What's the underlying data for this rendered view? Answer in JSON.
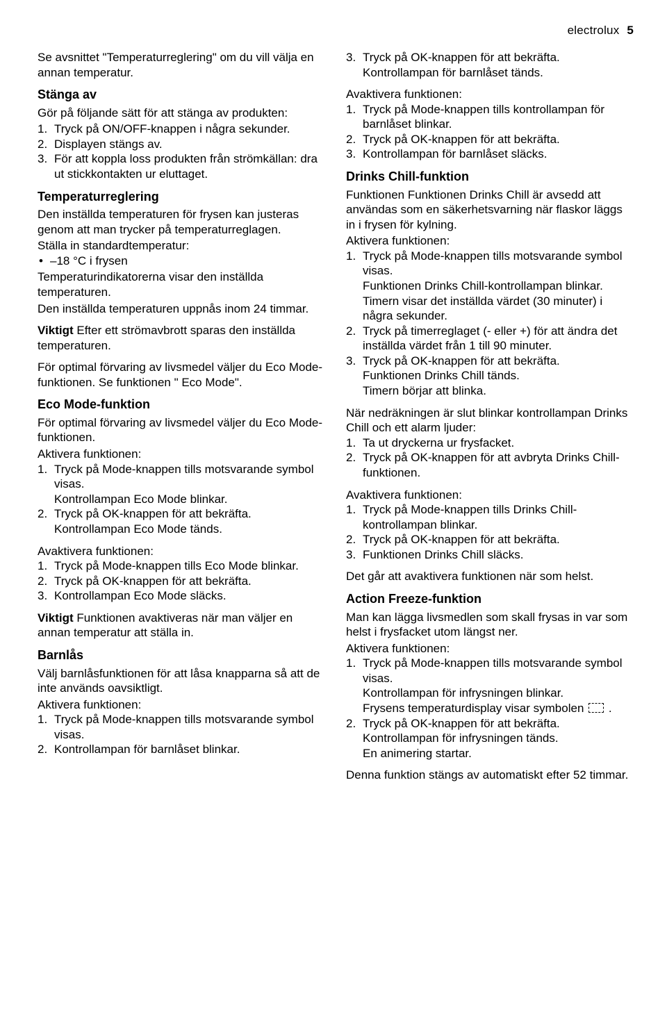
{
  "header": {
    "brand": "electrolux",
    "page_number": "5"
  },
  "left": {
    "intro": "Se avsnittet \"Temperaturreglering\" om du vill välja en annan temperatur.",
    "stanga_av": {
      "title": "Stänga av",
      "lead": "Gör på följande sätt för att stänga av produkten:",
      "items": [
        {
          "n": "1.",
          "t": "Tryck på ON/OFF-knappen i några sekunder."
        },
        {
          "n": "2.",
          "t": "Displayen stängs av."
        },
        {
          "n": "3.",
          "t": "För att koppla loss produkten från strömkällan: dra ut stickkontakten ur eluttaget."
        }
      ]
    },
    "temp": {
      "title": "Temperaturreglering",
      "p1": "Den inställda temperaturen för frysen kan justeras genom att man trycker på temperaturreglagen.",
      "p2": "Ställa in standardtemperatur:",
      "bullet": "–18 °C i frysen",
      "p3": "Temperaturindikatorerna visar den inställda temperaturen.",
      "p4": "Den inställda temperaturen uppnås inom 24 timmar.",
      "viktigt_label": "Viktigt",
      "viktigt_rest": " Efter ett strömavbrott sparas den inställda temperaturen.",
      "p5": "För optimal förvaring av livsmedel väljer du Eco Mode-funktionen. Se funktionen \" Eco Mode\"."
    },
    "eco": {
      "title": "Eco Mode-funktion",
      "lead": "För optimal förvaring av livsmedel väljer du Eco Mode-funktionen.",
      "act_label": "Aktivera funktionen:",
      "act_items": [
        {
          "n": "1.",
          "t": "Tryck på Mode-knappen tills motsvarande symbol visas.",
          "sub": "Kontrollampan Eco Mode blinkar."
        },
        {
          "n": "2.",
          "t": "Tryck på OK-knappen för att bekräfta.",
          "sub": "Kontrollampan Eco Mode tänds."
        }
      ],
      "deact_label": "Avaktivera funktionen:",
      "deact_items": [
        {
          "n": "1.",
          "t": "Tryck på Mode-knappen tills Eco Mode blinkar."
        },
        {
          "n": "2.",
          "t": "Tryck på OK-knappen för att bekräfta."
        },
        {
          "n": "3.",
          "t": "Kontrollampan Eco Mode släcks."
        }
      ],
      "viktigt_label": "Viktigt",
      "viktigt_rest": " Funktionen avaktiveras när man väljer en annan temperatur att ställa in."
    },
    "barnlas": {
      "title": "Barnlås",
      "lead": "Välj barnlåsfunktionen för att låsa knapparna så att de inte används oavsiktligt.",
      "act_label": "Aktivera funktionen:",
      "items": [
        {
          "n": "1.",
          "t": "Tryck på Mode-knappen tills motsvarande symbol visas."
        },
        {
          "n": "2.",
          "t": "Kontrollampan för barnlåset blinkar."
        }
      ]
    }
  },
  "right": {
    "barnlas_cont": {
      "items": [
        {
          "n": "3.",
          "t": "Tryck på OK-knappen för att bekräfta.",
          "sub": "Kontrollampan för barnlåset tänds."
        }
      ],
      "deact_label": "Avaktivera funktionen:",
      "deact_items": [
        {
          "n": "1.",
          "t": "Tryck på Mode-knappen tills kontrollampan för barnlåset blinkar."
        },
        {
          "n": "2.",
          "t": "Tryck på OK-knappen för att bekräfta."
        },
        {
          "n": "3.",
          "t": "Kontrollampan för barnlåset släcks."
        }
      ]
    },
    "drinks": {
      "title": "Drinks Chill-funktion",
      "p1": "Funktionen Funktionen Drinks Chill är avsedd att användas som en säkerhetsvarning när flaskor läggs in i frysen för kylning.",
      "act_label": "Aktivera funktionen:",
      "act_items": [
        {
          "n": "1.",
          "t": "Tryck på Mode-knappen tills motsvarande symbol visas.",
          "sub": "Funktionen Drinks Chill-kontrollampan blinkar.",
          "sub2": "Timern visar det inställda värdet (30 minuter) i några sekunder."
        },
        {
          "n": "2.",
          "t": "Tryck på timerreglaget (- eller +) för att ändra det inställda värdet från 1 till 90 minuter."
        },
        {
          "n": "3.",
          "t": "Tryck på OK-knappen för att bekräfta.",
          "sub": "Funktionen Drinks Chill tänds.",
          "sub2": "Timern börjar att blinka."
        }
      ],
      "p2": "När nedräkningen är slut blinkar kontrollampan Drinks Chill och ett alarm ljuder:",
      "p2_items": [
        {
          "n": "1.",
          "t": "Ta ut dryckerna ur frysfacket."
        },
        {
          "n": "2.",
          "t": "Tryck på OK-knappen för att avbryta Drinks Chill-funktionen."
        }
      ],
      "deact_label": "Avaktivera funktionen:",
      "deact_items": [
        {
          "n": "1.",
          "t": "Tryck på Mode-knappen tills Drinks Chill-kontrollampan blinkar."
        },
        {
          "n": "2.",
          "t": "Tryck på OK-knappen för att bekräfta."
        },
        {
          "n": "3.",
          "t": "Funktionen Drinks Chill släcks."
        }
      ],
      "p3": "Det går att avaktivera funktionen när som helst."
    },
    "freeze": {
      "title": "Action Freeze-funktion",
      "p1": "Man kan lägga livsmedlen som skall frysas in var som helst i frysfacket utom längst ner.",
      "act_label": "Aktivera funktionen:",
      "act_items": [
        {
          "n": "1.",
          "t": "Tryck på Mode-knappen tills motsvarande symbol visas.",
          "sub": "Kontrollampan för infrysningen blinkar.",
          "sub2_pre": "Frysens temperaturdisplay visar symbolen ",
          "sub2_post": " ."
        },
        {
          "n": "2.",
          "t": "Tryck på OK-knappen för att bekräfta.",
          "sub": "Kontrollampan för infrysningen tänds.",
          "sub2": "En animering startar."
        }
      ],
      "p2": "Denna funktion stängs av automatiskt efter 52 timmar."
    }
  }
}
